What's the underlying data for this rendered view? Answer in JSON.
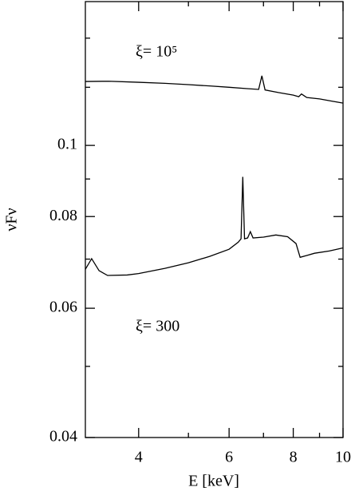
{
  "chart_data": {
    "type": "line",
    "xlabel": "E [keV]",
    "ylabel": "νFν",
    "xscale": "log",
    "yscale": "log",
    "xlim": [
      3.15,
      10
    ],
    "ylim": [
      0.04,
      0.157
    ],
    "xticks": [
      4,
      6,
      8,
      10
    ],
    "xminorticks": [
      5,
      7,
      9
    ],
    "yticks": [
      0.04,
      0.06,
      0.08,
      0.1
    ],
    "yminorticks": [
      0.05,
      0.07,
      0.09,
      0.12,
      0.14
    ],
    "series": [
      {
        "name": "ξ= 10⁵",
        "color": "#000000",
        "x": [
          3.15,
          3.5,
          4,
          4.5,
          5,
          5.5,
          6,
          6.5,
          6.85,
          6.95,
          7.05,
          7.5,
          8,
          8.2,
          8.3,
          8.5,
          9,
          9.5,
          10
        ],
        "values": [
          0.1222,
          0.1223,
          0.1219,
          0.1215,
          0.121,
          0.1205,
          0.12,
          0.1195,
          0.1192,
          0.1244,
          0.119,
          0.118,
          0.1171,
          0.1165,
          0.1175,
          0.1162,
          0.1157,
          0.1149,
          0.1142
        ]
      },
      {
        "name": "ξ= 300",
        "color": "#000000",
        "x": [
          3.15,
          3.24,
          3.35,
          3.48,
          3.8,
          4,
          4.5,
          5,
          5.5,
          6,
          6.25,
          6.33,
          6.38,
          6.43,
          6.52,
          6.6,
          6.68,
          7,
          7.4,
          7.8,
          8.1,
          8.25,
          8.5,
          8.8,
          9.4,
          10
        ],
        "values": [
          0.0678,
          0.0701,
          0.0675,
          0.0665,
          0.0666,
          0.0669,
          0.068,
          0.0692,
          0.0706,
          0.0722,
          0.0738,
          0.0746,
          0.0906,
          0.0746,
          0.0748,
          0.0763,
          0.0748,
          0.075,
          0.0755,
          0.0751,
          0.0735,
          0.0704,
          0.0708,
          0.0713,
          0.0718,
          0.0725
        ]
      }
    ]
  }
}
